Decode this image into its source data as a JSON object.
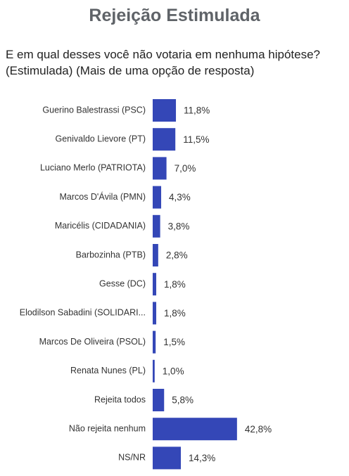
{
  "title": "Rejeição Estimulada",
  "question": "E em qual desses você não votaria em nenhuma hipótese? (Estimulada) (Mais de uma opção de resposta)",
  "colors": {
    "bar": "#3447b7"
  },
  "chart_data": {
    "type": "bar",
    "orientation": "horizontal",
    "categories": [
      "Guerino Balestrassi (PSC)",
      "Genivaldo Lievore (PT)",
      "Luciano Merlo (PATRIOTA)",
      "Marcos D'Ávila (PMN)",
      "Maricélis (CIDADANIA)",
      "Barbozinha (PTB)",
      "Gesse (DC)",
      "Elodilson Sabadini (SOLIDARI...",
      "Marcos De Oliveira (PSOL)",
      "Renata Nunes (PL)",
      "Rejeita todos",
      "Não rejeita nenhum",
      "NS/NR"
    ],
    "values": [
      11.8,
      11.5,
      7.0,
      4.3,
      3.8,
      2.8,
      1.8,
      1.8,
      1.5,
      1.0,
      5.8,
      42.8,
      14.3
    ],
    "value_labels": [
      "11,8%",
      "11,5%",
      "7,0%",
      "4,3%",
      "3,8%",
      "2,8%",
      "1,8%",
      "1,8%",
      "1,5%",
      "1,0%",
      "5,8%",
      "42,8%",
      "14,3%"
    ],
    "unit": "%",
    "grid": false,
    "legend": "none"
  }
}
